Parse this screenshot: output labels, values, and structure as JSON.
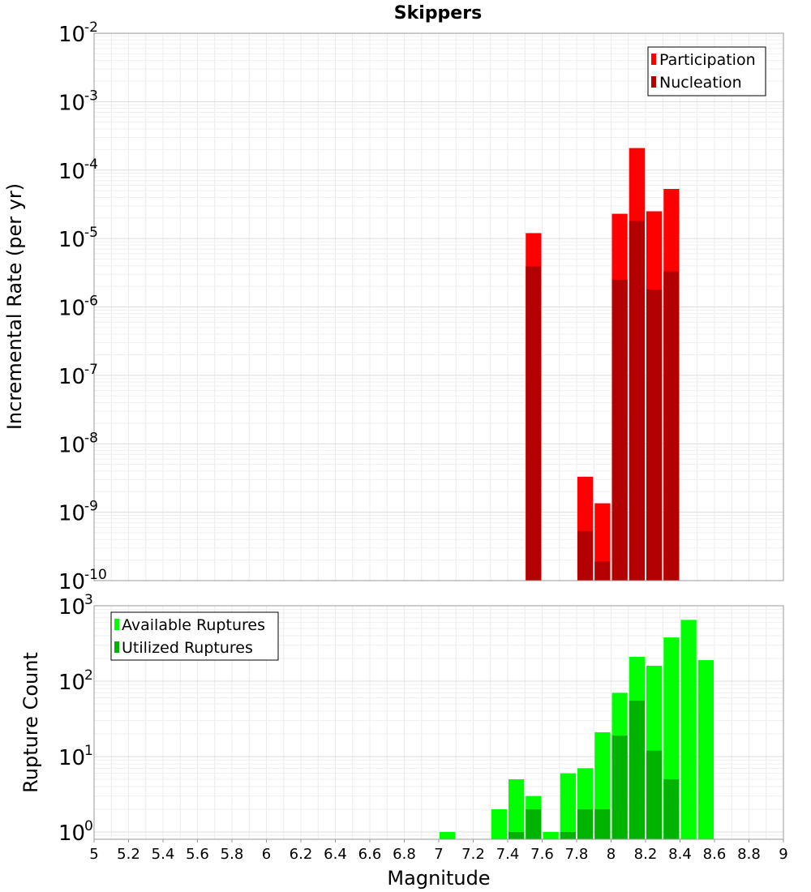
{
  "chart_data": [
    {
      "type": "bar",
      "title": "Skippers",
      "ylabel": "Incremental Rate (per yr)",
      "yscale": "log",
      "ylim": [
        1e-10,
        0.01
      ],
      "ytick_base": "10",
      "ytick_exponents": [
        "-2",
        "-3",
        "-4",
        "-5",
        "-6",
        "-7",
        "-8",
        "-9",
        "-10"
      ],
      "xlim": [
        5,
        9
      ],
      "bin_width": 0.1,
      "grid": true,
      "legend_position": "top-right",
      "legend": [
        "Participation",
        "Nucleation"
      ],
      "colors": {
        "Participation": "#ff0000",
        "Nucleation": "#b30000"
      },
      "series": [
        {
          "name": "Participation",
          "x": [
            7.55,
            7.85,
            7.95,
            8.05,
            8.15,
            8.25,
            8.35
          ],
          "values": [
            1.2e-05,
            3.3e-09,
            1.35e-09,
            2.3e-05,
            0.00021,
            2.5e-05,
            5.3e-05
          ]
        },
        {
          "name": "Nucleation",
          "x": [
            7.55,
            7.85,
            7.95,
            8.05,
            8.15,
            8.25,
            8.35
          ],
          "values": [
            3.9e-06,
            5.3e-10,
            1.9e-10,
            2.5e-06,
            1.8e-05,
            1.8e-06,
            3.3e-06
          ]
        }
      ]
    },
    {
      "type": "bar",
      "ylabel": "Rupture Count",
      "xlabel": "Magnitude",
      "yscale": "log",
      "ylim": [
        0.8,
        1000
      ],
      "ytick_base": "10",
      "ytick_exponents": [
        "3",
        "2",
        "1",
        "0"
      ],
      "xlim": [
        5,
        9
      ],
      "xticks": [
        "5",
        "5.2",
        "5.4",
        "5.6",
        "5.8",
        "6",
        "6.2",
        "6.4",
        "6.6",
        "6.8",
        "7",
        "7.2",
        "7.4",
        "7.6",
        "7.8",
        "8",
        "8.2",
        "8.4",
        "8.6",
        "8.8",
        "9"
      ],
      "bin_width": 0.1,
      "grid": true,
      "legend_position": "top-left",
      "legend": [
        "Available Ruptures",
        "Utilized Ruptures"
      ],
      "colors": {
        "Available Ruptures": "#00ff00",
        "Utilized Ruptures": "#00b300"
      },
      "series": [
        {
          "name": "Available Ruptures",
          "x": [
            7.05,
            7.35,
            7.45,
            7.55,
            7.65,
            7.75,
            7.85,
            7.95,
            8.05,
            8.15,
            8.25,
            8.35,
            8.45,
            8.55
          ],
          "values": [
            1,
            2,
            5,
            3,
            1,
            6,
            7,
            21,
            70,
            210,
            160,
            380,
            650,
            190
          ]
        },
        {
          "name": "Utilized Ruptures",
          "x": [
            7.45,
            7.55,
            7.75,
            7.85,
            7.95,
            8.05,
            8.15,
            8.25,
            8.35
          ],
          "values": [
            1,
            2,
            1,
            2,
            2,
            19,
            55,
            12,
            5
          ]
        }
      ]
    }
  ]
}
